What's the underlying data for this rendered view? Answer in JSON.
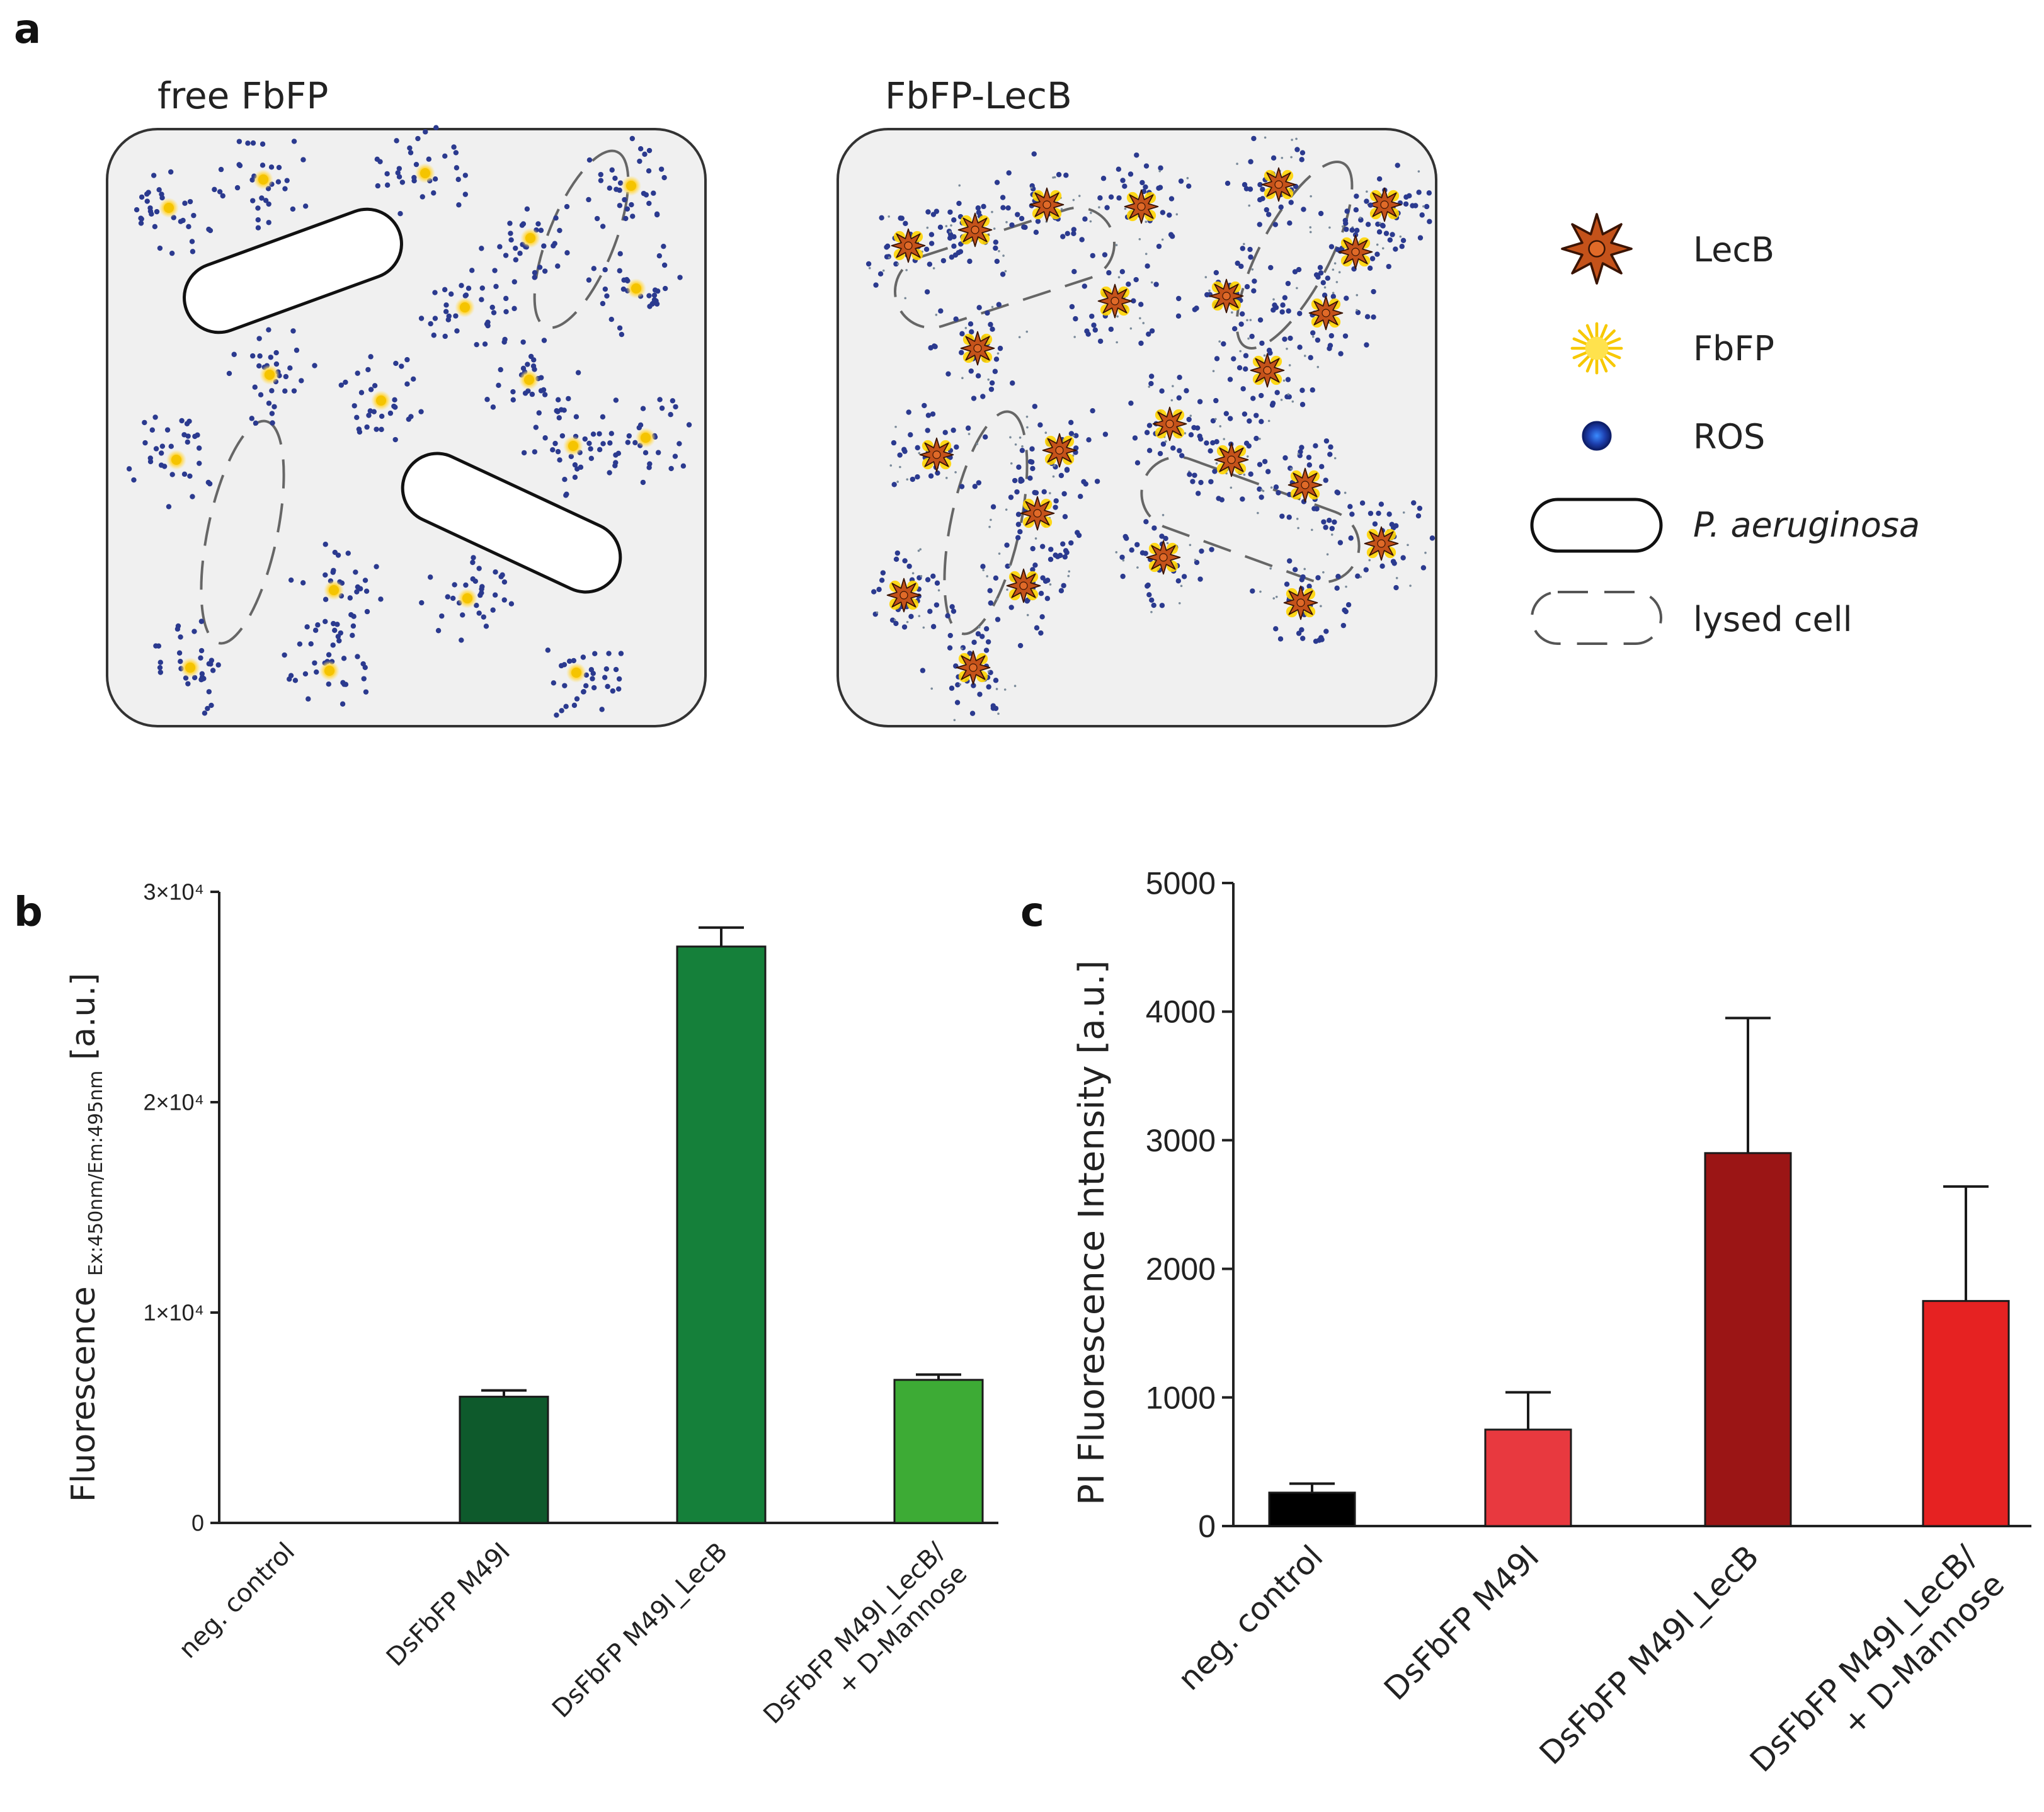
{
  "panels": {
    "a": {
      "letter": "a"
    },
    "b": {
      "letter": "b"
    },
    "c": {
      "letter": "c"
    }
  },
  "schematic": {
    "left_title": "free FbFP",
    "right_title": "FbFP-LecB"
  },
  "legend": {
    "items": [
      {
        "label": "LecB",
        "italic": false,
        "icon": "lecb-icon"
      },
      {
        "label": "FbFP",
        "italic": false,
        "icon": "fbfp-icon"
      },
      {
        "label": "ROS",
        "italic": false,
        "icon": "ros-icon"
      },
      {
        "label": "P. aeruginosa",
        "italic": true,
        "icon": "intact-cell-icon"
      },
      {
        "label": "lysed cell",
        "italic": false,
        "icon": "lysed-cell-icon"
      }
    ]
  },
  "colors": {
    "box_fill": "#f0f0f0",
    "ros_dot": "#2b3a8f",
    "fbfp_core": "#f5c400",
    "fbfp_glow": "#ffe27a",
    "lecb": "#c4521a",
    "b_bars": [
      "#ffffff",
      "#0e5a2c",
      "#15803a",
      "#3dab35"
    ],
    "c_bars": [
      "#000000",
      "#e8393f",
      "#9b1515",
      "#e62222"
    ]
  },
  "chart_data": [
    {
      "panel": "b",
      "type": "bar",
      "title": "",
      "categories": [
        "neg. control",
        "DsFbFP M49I",
        "DsFbFP M49I_LecB",
        "DsFbFP M49I_LecB/\n+ D-Mannose"
      ],
      "values": [
        0,
        6000,
        27400,
        6800
      ],
      "errors": [
        0,
        300,
        900,
        250
      ],
      "ylim": [
        0,
        30000
      ],
      "yticks": [
        0,
        10000,
        20000,
        30000
      ],
      "ytick_labels": [
        "0",
        "1×10⁴",
        "2×10⁴",
        "3×10⁴"
      ],
      "ylabel_main": "Fluorescence",
      "ylabel_sub": "Ex:450nm/Em:495nm",
      "ylabel_unit": "[a.u.]",
      "xlabel": ""
    },
    {
      "panel": "c",
      "type": "bar",
      "title": "",
      "categories": [
        "neg. control",
        "DsFbFP M49I",
        "DsFbFP M49I_LecB",
        "DsFbFP M49I_LecB/\n+ D-Mannose"
      ],
      "values": [
        260,
        750,
        2900,
        1750
      ],
      "errors": [
        70,
        290,
        1050,
        890
      ],
      "ylim": [
        0,
        5000
      ],
      "yticks": [
        0,
        1000,
        2000,
        3000,
        4000,
        5000
      ],
      "ytick_labels": [
        "0",
        "1000",
        "2000",
        "3000",
        "4000",
        "5000"
      ],
      "ylabel": "PI Fluorescence Intensity [a.u.]",
      "xlabel": ""
    }
  ]
}
